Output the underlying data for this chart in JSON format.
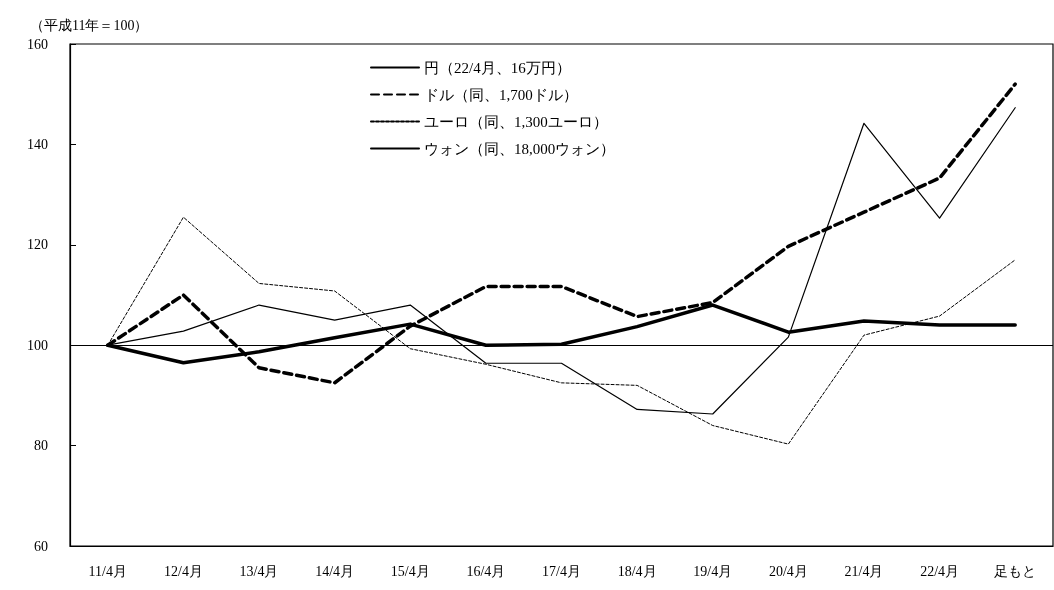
{
  "chart_data": {
    "type": "line",
    "ylabel": "（平成11年＝100）",
    "categories": [
      "11/4月",
      "12/4月",
      "13/4月",
      "14/4月",
      "15/4月",
      "16/4月",
      "17/4月",
      "18/4月",
      "19/4月",
      "20/4月",
      "21/4月",
      "22/4月",
      "足もと"
    ],
    "series": [
      {
        "name": "円（22/4月、16万円）",
        "color": "#000000",
        "line_style": "solid",
        "values": [
          100,
          96.5,
          98.7,
          101.5,
          104.2,
          100,
          100.2,
          103.7,
          108,
          102.6,
          104.8,
          104,
          104
        ]
      },
      {
        "name": "ドル（同、1,700ドル）",
        "color": "#000000",
        "line_style": "dashed",
        "values": [
          100,
          110,
          95.5,
          92.5,
          103.8,
          111.7,
          111.7,
          105.7,
          108.5,
          119.7,
          126.5,
          133.3,
          152
        ]
      },
      {
        "name": "ユーロ（同、1,300ユーロ）",
        "color": "#000000",
        "line_style": "dotted",
        "values": [
          100,
          125.5,
          112.3,
          110.8,
          99.3,
          96.2,
          92.5,
          92,
          84,
          80.3,
          102,
          105.8,
          117
        ]
      },
      {
        "name": "ウォン（同、18,000ウォン）",
        "color": "#000000",
        "line_style": "solid",
        "values": [
          100,
          102.8,
          108,
          105,
          108,
          96.4,
          96.4,
          87.2,
          86.3,
          101.6,
          144.2,
          125.3,
          147.3
        ]
      }
    ],
    "ylim": [
      60,
      160
    ],
    "yticks": [
      60,
      80,
      100,
      120,
      140,
      160
    ],
    "ref_lines": [
      {
        "axis": "y",
        "value": 100,
        "color": "#000000"
      }
    ],
    "legend": "top",
    "marker": "none",
    "grid": false
  }
}
